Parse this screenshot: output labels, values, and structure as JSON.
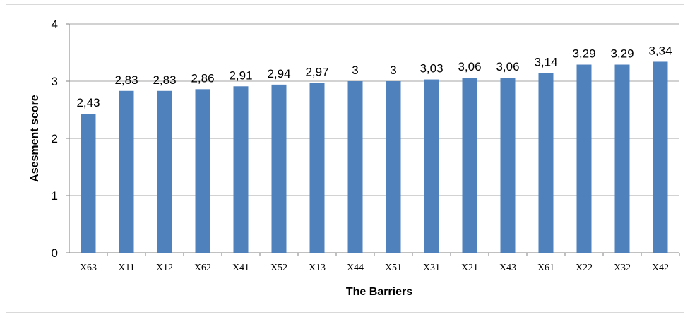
{
  "chart_data": {
    "type": "bar",
    "categories": [
      "X63",
      "X11",
      "X12",
      "X62",
      "X41",
      "X52",
      "X13",
      "X44",
      "X51",
      "X31",
      "X21",
      "X43",
      "X61",
      "X22",
      "X32",
      "X42"
    ],
    "values": [
      2.43,
      2.83,
      2.83,
      2.86,
      2.91,
      2.94,
      2.97,
      3,
      3,
      3.03,
      3.06,
      3.06,
      3.14,
      3.29,
      3.29,
      3.34
    ],
    "data_labels": [
      "2,43",
      "2,83",
      "2,83",
      "2,86",
      "2,91",
      "2,94",
      "2,97",
      "3",
      "3",
      "3,03",
      "3,06",
      "3,06",
      "3,14",
      "3,29",
      "3,29",
      "3,34"
    ],
    "xlabel": "The Barriers",
    "ylabel": "Asesment score",
    "ylim": [
      0,
      4
    ],
    "yticks": [
      "0",
      "1",
      "2",
      "3",
      "4"
    ],
    "grid": true,
    "legend": "none",
    "bar_color": "#4f81bd",
    "grid_color": "#a6a6a6"
  }
}
